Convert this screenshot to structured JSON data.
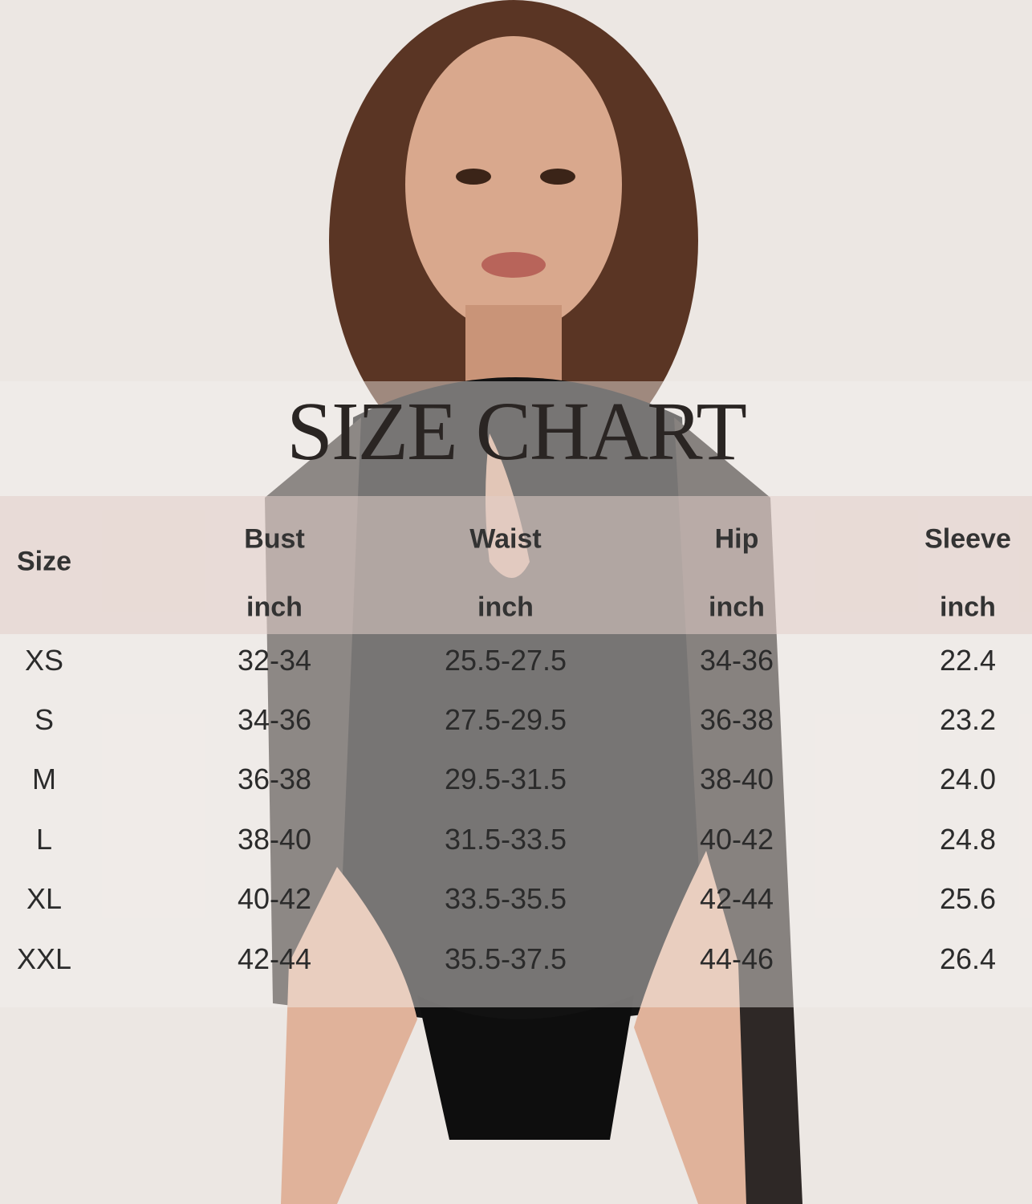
{
  "title": "SIZE CHART",
  "columns": [
    {
      "name": "Size",
      "unit": ""
    },
    {
      "name": "Bust",
      "unit": "inch"
    },
    {
      "name": "Waist",
      "unit": "inch"
    },
    {
      "name": "Hip",
      "unit": "inch"
    },
    {
      "name": "Sleeve",
      "unit": "inch"
    }
  ],
  "rows": [
    [
      "XS",
      "32-34",
      "25.5-27.5",
      "34-36",
      "22.4"
    ],
    [
      "S",
      "34-36",
      "27.5-29.5",
      "36-38",
      "23.2"
    ],
    [
      "M",
      "36-38",
      "29.5-31.5",
      "38-40",
      "24.0"
    ],
    [
      "L",
      "38-40",
      "31.5-33.5",
      "40-42",
      "24.8"
    ],
    [
      "XL",
      "40-42",
      "33.5-35.5",
      "42-44",
      "25.6"
    ],
    [
      "XXL",
      "42-44",
      "35.5-37.5",
      "44-46",
      "26.4"
    ]
  ],
  "colors": {
    "background": "#ece7e3",
    "header_band": "#e1cdc8",
    "bodysuit": "#111111",
    "text": "#2b2b2b"
  }
}
